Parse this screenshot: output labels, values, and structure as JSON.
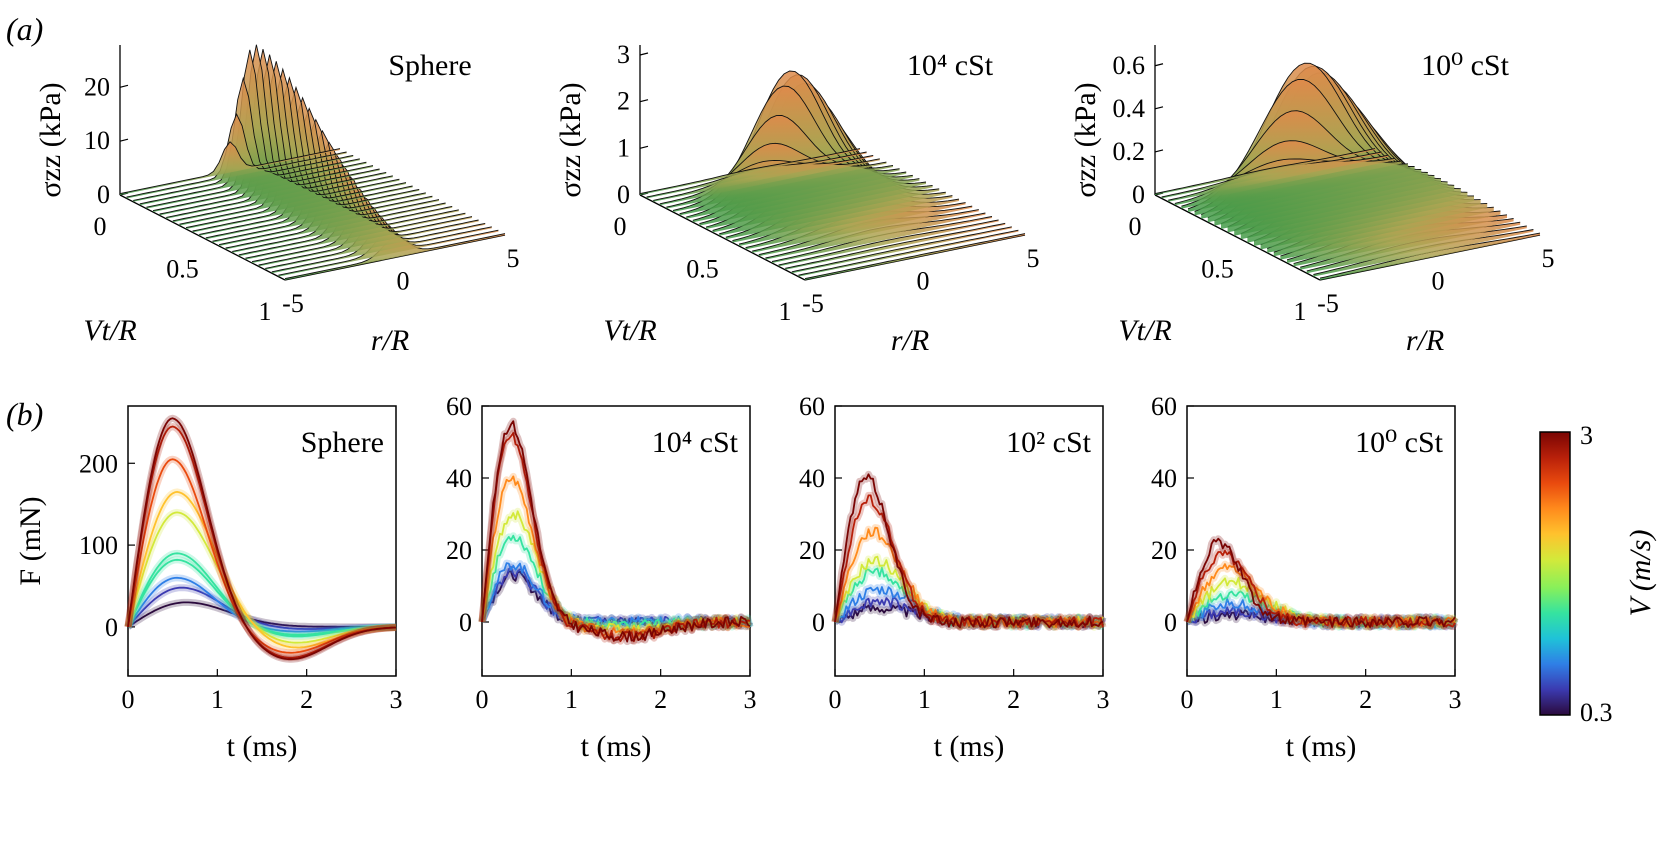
{
  "figure": {
    "label_a": "(a)",
    "label_b": "(b)"
  },
  "chart_data": [
    {
      "type": "surface3d",
      "row": "a",
      "title": "Sphere",
      "zlabel": "σzz (kPa)",
      "xlabel": "Vt/R",
      "ylabel": "r/R",
      "zticks": [
        "0",
        "10",
        "20"
      ],
      "xticks": [
        "0",
        "0.5",
        "1"
      ],
      "yticks": [
        "-5",
        "0",
        "5"
      ],
      "zlim": [
        0,
        26
      ],
      "xlim": [
        0,
        1
      ],
      "ylim": [
        -5,
        5
      ],
      "peak": {
        "z": 26,
        "vt": 0.15,
        "r": 0,
        "width": 0.5,
        "decay": 0.6
      }
    },
    {
      "type": "surface3d",
      "row": "a",
      "title": "10⁴ cSt",
      "zlabel": "σzz (kPa)",
      "xlabel": "Vt/R",
      "ylabel": "r/R",
      "zticks": [
        "0",
        "1",
        "2",
        "3"
      ],
      "xticks": [
        "0",
        "0.5",
        "1"
      ],
      "yticks": [
        "-5",
        "0",
        "5"
      ],
      "zlim": [
        0,
        3
      ],
      "xlim": [
        0,
        1
      ],
      "ylim": [
        -5,
        5
      ],
      "peak": {
        "z": 2.6,
        "vt": 0.25,
        "r": 0,
        "width": 1.8,
        "decay": 0.3
      }
    },
    {
      "type": "surface3d",
      "row": "a",
      "title": "10⁰ cSt",
      "zlabel": "σzz (kPa)",
      "xlabel": "Vt/R",
      "ylabel": "r/R",
      "zticks": [
        "0",
        "0.2",
        "0.4",
        "0.6"
      ],
      "xticks": [
        "0",
        "0.5",
        "1"
      ],
      "yticks": [
        "-5",
        "0",
        "5"
      ],
      "zlim": [
        0,
        0.65
      ],
      "xlim": [
        0,
        1
      ],
      "ylim": [
        -5,
        5
      ],
      "peak": {
        "z": 0.6,
        "vt": 0.25,
        "r": 0,
        "width": 2.2,
        "decay": 0.4
      }
    },
    {
      "type": "line",
      "row": "b",
      "title": "Sphere",
      "xlabel": "t (ms)",
      "ylabel": "F (mN)",
      "xlim": [
        0,
        3
      ],
      "ylim": [
        -60,
        270
      ],
      "xticks": [
        "0",
        "1",
        "2",
        "3"
      ],
      "yticks": [
        "0",
        "100",
        "200"
      ],
      "series": [
        {
          "V": 3.0,
          "peak": 255,
          "t_peak": 0.5,
          "undershoot": -40
        },
        {
          "V": 2.8,
          "peak": 245,
          "t_peak": 0.5,
          "undershoot": -38
        },
        {
          "V": 2.5,
          "peak": 205,
          "t_peak": 0.5,
          "undershoot": -32
        },
        {
          "V": 2.1,
          "peak": 165,
          "t_peak": 0.55,
          "undershoot": -26
        },
        {
          "V": 1.8,
          "peak": 140,
          "t_peak": 0.55,
          "undershoot": -20
        },
        {
          "V": 1.4,
          "peak": 90,
          "t_peak": 0.55,
          "undershoot": -12
        },
        {
          "V": 1.2,
          "peak": 82,
          "t_peak": 0.55,
          "undershoot": -10
        },
        {
          "V": 0.9,
          "peak": 60,
          "t_peak": 0.55,
          "undershoot": -6
        },
        {
          "V": 0.6,
          "peak": 48,
          "t_peak": 0.6,
          "undershoot": -3
        },
        {
          "V": 0.3,
          "peak": 30,
          "t_peak": 0.65,
          "undershoot": 0
        }
      ]
    },
    {
      "type": "line",
      "row": "b",
      "title": "10⁴ cSt",
      "xlabel": "t (ms)",
      "ylabel": "",
      "xlim": [
        0,
        3
      ],
      "ylim": [
        -15,
        60
      ],
      "xticks": [
        "0",
        "1",
        "2",
        "3"
      ],
      "yticks": [
        "0",
        "20",
        "40",
        "60"
      ],
      "series": [
        {
          "V": 3.0,
          "peak": 55,
          "t_peak": 0.32,
          "undershoot": -4
        },
        {
          "V": 2.7,
          "peak": 52,
          "t_peak": 0.32,
          "undershoot": -4
        },
        {
          "V": 2.3,
          "peak": 40,
          "t_peak": 0.33,
          "undershoot": -3
        },
        {
          "V": 1.8,
          "peak": 30,
          "t_peak": 0.35,
          "undershoot": -2
        },
        {
          "V": 1.4,
          "peak": 24,
          "t_peak": 0.35,
          "undershoot": -1
        },
        {
          "V": 0.9,
          "peak": 16,
          "t_peak": 0.35,
          "undershoot": 0
        },
        {
          "V": 0.6,
          "peak": 14,
          "t_peak": 0.35,
          "undershoot": 0
        },
        {
          "V": 0.3,
          "peak": 13,
          "t_peak": 0.35,
          "undershoot": 0
        }
      ]
    },
    {
      "type": "line",
      "row": "b",
      "title": "10² cSt",
      "xlabel": "t (ms)",
      "ylabel": "",
      "xlim": [
        0,
        3
      ],
      "ylim": [
        -15,
        60
      ],
      "xticks": [
        "0",
        "1",
        "2",
        "3"
      ],
      "yticks": [
        "0",
        "20",
        "40",
        "60"
      ],
      "series": [
        {
          "V": 3.0,
          "peak": 40,
          "t_peak": 0.35,
          "undershoot": 0
        },
        {
          "V": 2.7,
          "peak": 34,
          "t_peak": 0.38,
          "undershoot": 0
        },
        {
          "V": 2.3,
          "peak": 25,
          "t_peak": 0.42,
          "undershoot": 0
        },
        {
          "V": 1.8,
          "peak": 17,
          "t_peak": 0.45,
          "undershoot": 0
        },
        {
          "V": 1.4,
          "peak": 14,
          "t_peak": 0.45,
          "undershoot": 0
        },
        {
          "V": 0.9,
          "peak": 9,
          "t_peak": 0.5,
          "undershoot": 0
        },
        {
          "V": 0.6,
          "peak": 6,
          "t_peak": 0.5,
          "undershoot": 0
        },
        {
          "V": 0.3,
          "peak": 4,
          "t_peak": 0.5,
          "undershoot": 0
        }
      ]
    },
    {
      "type": "line",
      "row": "b",
      "title": "10⁰ cSt",
      "xlabel": "t (ms)",
      "ylabel": "",
      "xlim": [
        0,
        3
      ],
      "ylim": [
        -15,
        60
      ],
      "xticks": [
        "0",
        "1",
        "2",
        "3"
      ],
      "yticks": [
        "0",
        "20",
        "40",
        "60"
      ],
      "series": [
        {
          "V": 3.0,
          "peak": 22,
          "t_peak": 0.35,
          "undershoot": 0
        },
        {
          "V": 2.7,
          "peak": 19,
          "t_peak": 0.4,
          "undershoot": 0
        },
        {
          "V": 2.3,
          "peak": 15,
          "t_peak": 0.45,
          "undershoot": 0
        },
        {
          "V": 1.8,
          "peak": 11,
          "t_peak": 0.5,
          "undershoot": 0
        },
        {
          "V": 1.4,
          "peak": 8,
          "t_peak": 0.5,
          "undershoot": 0
        },
        {
          "V": 0.9,
          "peak": 5,
          "t_peak": 0.5,
          "undershoot": 0
        },
        {
          "V": 0.6,
          "peak": 3,
          "t_peak": 0.5,
          "undershoot": 0
        },
        {
          "V": 0.3,
          "peak": 2,
          "t_peak": 0.5,
          "undershoot": 0
        }
      ]
    }
  ],
  "colorbar": {
    "label": "V (m/s)",
    "min_label": "0.3",
    "max_label": "3",
    "min": 0.3,
    "max": 3,
    "colors": [
      "#2b0a3d",
      "#3b3ab0",
      "#2f7fe6",
      "#1fc2d8",
      "#35e3a0",
      "#88f05a",
      "#d3e93a",
      "#ffc22d",
      "#ff8a1c",
      "#e94a0e",
      "#b8200a",
      "#7a0503"
    ]
  }
}
